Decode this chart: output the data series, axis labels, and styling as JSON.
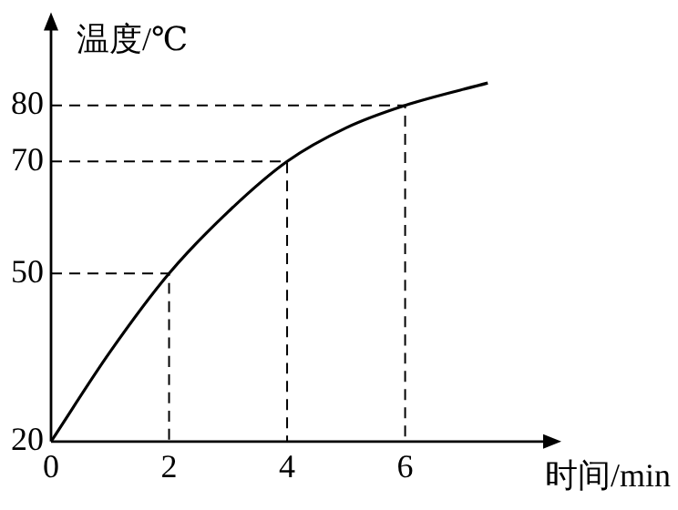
{
  "chart_data": {
    "type": "line",
    "xlabel": "时间/min",
    "ylabel": "温度/℃",
    "x": [
      0,
      1,
      2,
      3,
      4,
      5,
      6,
      7.4
    ],
    "series": [
      {
        "color": "#000000",
        "values": [
          20,
          36,
          50,
          61,
          70,
          76,
          80,
          84
        ]
      },
      {
        "color": "#000000",
        "x": [
          0,
          2,
          2
        ],
        "values": [
          50,
          50,
          20
        ],
        "line_style": "dashed"
      },
      {
        "color": "#000000",
        "x": [
          0,
          4,
          4
        ],
        "values": [
          70,
          70,
          20
        ],
        "line_style": "dashed"
      },
      {
        "color": "#000000",
        "x": [
          0,
          6,
          6
        ],
        "values": [
          80,
          80,
          20
        ],
        "line_style": "dashed"
      }
    ],
    "xlim": [
      0,
      8.4
    ],
    "ylim": [
      20,
      94
    ],
    "xticks": [
      0,
      2,
      4,
      6
    ],
    "yticks": [
      20,
      50,
      70,
      80
    ],
    "grid": false,
    "legend": false,
    "marker": "none",
    "line_style": "solid"
  }
}
